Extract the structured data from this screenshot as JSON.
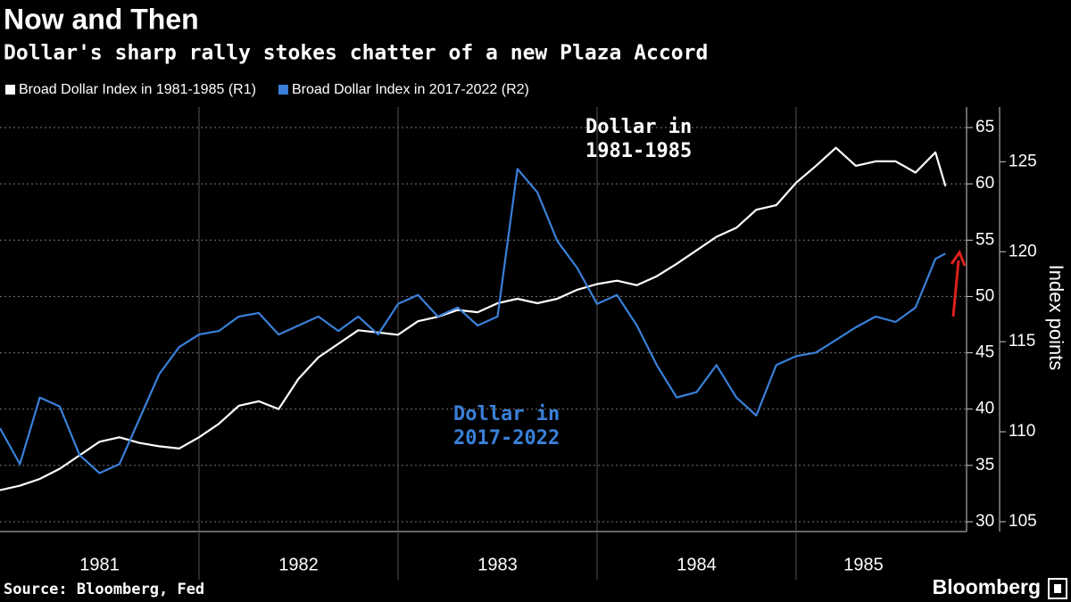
{
  "chart_data": {
    "type": "line",
    "title": "Now and Then",
    "subtitle": "Dollar's sharp rally stokes chatter of a new Plaza Accord",
    "source": "Source: Bloomberg, Fed",
    "brand": "Bloomberg",
    "y2_label": "Index points",
    "x": [
      1981.0,
      1981.1,
      1981.2,
      1981.3,
      1981.4,
      1981.5,
      1981.6,
      1981.7,
      1981.8,
      1981.9,
      1982.0,
      1982.1,
      1982.2,
      1982.3,
      1982.4,
      1982.5,
      1982.6,
      1982.7,
      1982.8,
      1982.9,
      1983.0,
      1983.1,
      1983.2,
      1983.3,
      1983.4,
      1983.5,
      1983.6,
      1983.7,
      1983.8,
      1983.9,
      1984.0,
      1984.1,
      1984.2,
      1984.3,
      1984.4,
      1984.5,
      1984.6,
      1984.7,
      1984.8,
      1984.9,
      1985.0,
      1985.1,
      1985.2,
      1985.3,
      1985.4,
      1985.5,
      1985.6,
      1985.7,
      1985.75
    ],
    "xlim": [
      1981,
      1986
    ],
    "xticks": [
      {
        "value": 1981,
        "label": "1981"
      },
      {
        "value": 1982,
        "label": "1982"
      },
      {
        "value": 1983,
        "label": "1983"
      },
      {
        "value": 1984,
        "label": "1984"
      },
      {
        "value": 1985,
        "label": "1985"
      }
    ],
    "ylim": [
      30,
      65
    ],
    "yticks": [
      30,
      35,
      40,
      45,
      50,
      55,
      60,
      65
    ],
    "y2lim": [
      105,
      126.9
    ],
    "y2ticks": [
      105,
      110,
      115,
      120,
      125
    ],
    "grid": true,
    "series": [
      {
        "name": "Broad Dollar Index in 1981-1985 (R1)",
        "color": "#ffffff",
        "values": [
          32.8,
          33.2,
          33.8,
          34.7,
          35.9,
          37.1,
          37.5,
          37.0,
          36.7,
          36.5,
          37.5,
          38.7,
          40.3,
          40.7,
          40.0,
          42.7,
          44.6,
          45.8,
          47.0,
          46.8,
          46.6,
          47.8,
          48.2,
          48.8,
          48.6,
          49.4,
          49.8,
          49.4,
          49.8,
          50.6,
          51.1,
          51.4,
          51.0,
          51.8,
          52.9,
          54.1,
          55.3,
          56.1,
          57.7,
          58.1,
          60.1,
          61.6,
          63.2,
          61.6,
          62.0,
          62.0,
          61.0,
          62.8,
          59.8
        ]
      },
      {
        "name": "Broad Dollar Index in 2017-2022 (R2)",
        "color": "#3a80d9",
        "axis": "y2",
        "values": [
          110.2,
          108.2,
          111.9,
          111.4,
          108.7,
          107.7,
          108.2,
          110.7,
          113.2,
          114.7,
          115.4,
          115.6,
          116.4,
          116.6,
          115.4,
          115.9,
          116.4,
          115.6,
          116.4,
          115.4,
          117.1,
          117.6,
          116.4,
          116.9,
          115.9,
          116.4,
          124.6,
          123.3,
          120.6,
          119.1,
          117.1,
          117.6,
          115.9,
          113.7,
          111.9,
          112.2,
          113.7,
          111.9,
          110.9,
          113.7,
          114.2,
          114.4,
          115.1,
          115.8,
          116.4,
          116.1,
          116.9,
          119.6,
          119.9
        ]
      }
    ],
    "annotations": [
      {
        "text": [
          "Dollar in",
          "1981-1985"
        ],
        "color": "#ffffff"
      },
      {
        "text": [
          "Dollar in",
          "2017-2022"
        ],
        "color": "#3a80d9"
      }
    ]
  }
}
